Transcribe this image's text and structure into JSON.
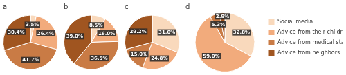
{
  "chart_data": [
    {
      "type": "pie",
      "title": "a",
      "categories": [
        "Social media",
        "Advice from their children",
        "Advice from medical staff",
        "Advice from neighbors"
      ],
      "values": [
        3.5,
        26.4,
        41.7,
        30.4
      ],
      "value_labels": [
        "3.5%",
        "26.4%",
        "41.7%",
        "30.4%"
      ],
      "colors": [
        "#f9d9bc",
        "#f2ab7c",
        "#c97b45",
        "#a05520"
      ],
      "data_labels": true
    },
    {
      "type": "pie",
      "title": "b",
      "categories": [
        "Social media",
        "Advice from their children",
        "Advice from medical staff",
        "Advice from neighbors"
      ],
      "values": [
        8.5,
        16.0,
        36.5,
        39.0
      ],
      "value_labels": [
        "8.5%",
        "16.0%",
        "36.5%",
        "39.0%"
      ],
      "colors": [
        "#f9d9bc",
        "#f2ab7c",
        "#c97b45",
        "#a05520"
      ],
      "data_labels": true
    },
    {
      "type": "pie",
      "title": "c",
      "categories": [
        "Social media",
        "Advice from their children",
        "Advice from medical staff",
        "Advice from neighbors"
      ],
      "values": [
        31.0,
        24.8,
        15.0,
        29.2
      ],
      "value_labels": [
        "31.0%",
        "24.8%",
        "15.0%",
        "29.2%"
      ],
      "colors": [
        "#f9d9bc",
        "#f2ab7c",
        "#c97b45",
        "#a05520"
      ],
      "data_labels": true
    },
    {
      "type": "pie",
      "title": "d",
      "categories": [
        "Social media",
        "Advice from their children",
        "Advice from medical staff",
        "Advice from neighbors"
      ],
      "values": [
        32.8,
        59.0,
        5.3,
        2.9
      ],
      "value_labels": [
        "32.8%",
        "59.0%",
        "5.3%",
        "2.9%"
      ],
      "colors": [
        "#f9d9bc",
        "#f2ab7c",
        "#c97b45",
        "#a05520"
      ],
      "data_labels": true,
      "legend": "right"
    }
  ]
}
